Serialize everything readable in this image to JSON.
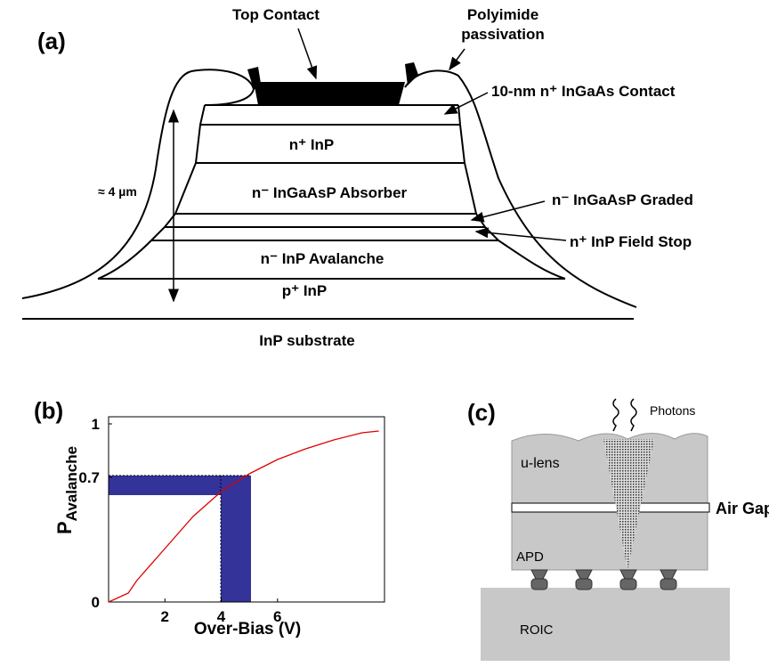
{
  "panel_a": {
    "label": "(a)",
    "top_contact": "Top Contact",
    "polyimide": [
      "Polyimide",
      "passivation"
    ],
    "contact_layer": "10-nm n⁺ InGaAs Contact",
    "n_inp": "n⁺ InP",
    "absorber": "n⁻  InGaAsP Absorber",
    "graded": "n⁻  InGaAsP Graded",
    "field_stop": "n⁺ InP Field Stop",
    "avalanche": "n⁻ InP Avalanche",
    "p_inp": "p⁺ InP",
    "substrate": "InP substrate",
    "thickness": "≈ 4 µm"
  },
  "chart_data": {
    "type": "line",
    "title": "(b)",
    "x_label": "Over-Bias (V)",
    "y_label": "P",
    "y_label_subscript": "Avalanche",
    "x": [
      0,
      0.7,
      1,
      2,
      3,
      4,
      5,
      6,
      7,
      8,
      9,
      9.6
    ],
    "series": [
      {
        "color": "#e00000",
        "values": [
          0,
          0.05,
          0.12,
          0.3,
          0.48,
          0.62,
          0.72,
          0.8,
          0.86,
          0.91,
          0.95,
          0.96
        ]
      }
    ],
    "xlim": [
      0,
      9.8
    ],
    "ylim": [
      0,
      1
    ],
    "xticks": [
      2,
      4,
      6
    ],
    "yticks": [
      0,
      0.7,
      1
    ]
  },
  "panel_c": {
    "label": "(c)",
    "photons": "Photons",
    "lens": "u-lens",
    "air_gap": "Air Gap",
    "apd": "APD",
    "roic": "ROIC"
  }
}
